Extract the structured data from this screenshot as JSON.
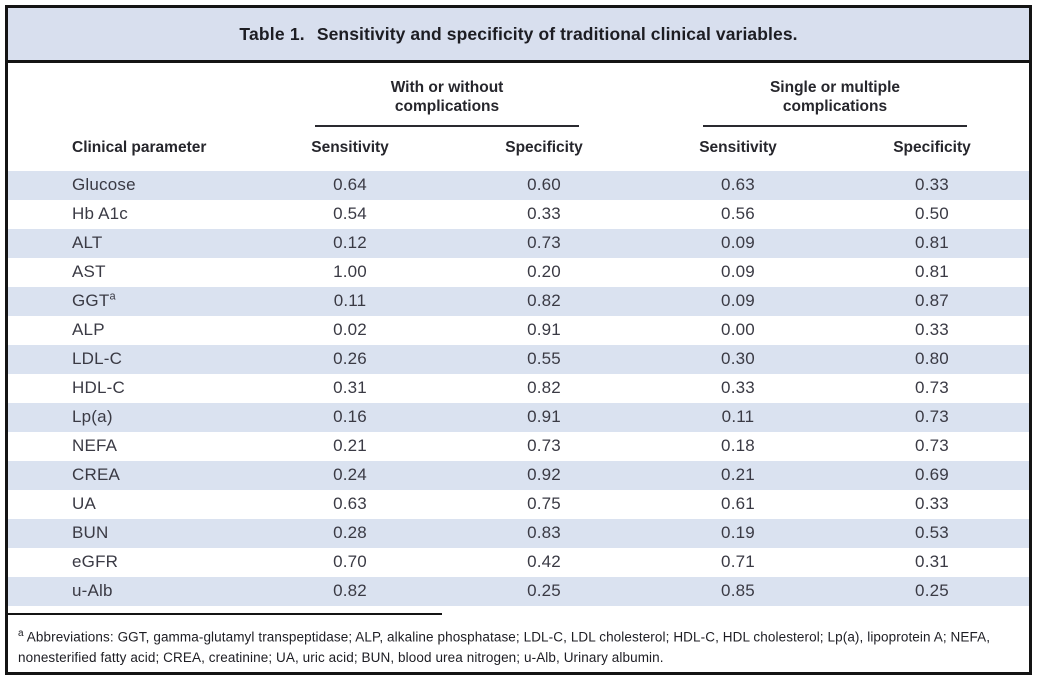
{
  "title": {
    "label": "Table 1.",
    "text": "Sensitivity and specificity of traditional clinical variables."
  },
  "table": {
    "param_header": "Clinical parameter",
    "groups": [
      {
        "line1": "With or without",
        "line2": "complications"
      },
      {
        "line1": "Single or multiple",
        "line2": "complications"
      }
    ],
    "subheaders": [
      "Sensitivity",
      "Specificity",
      "Sensitivity",
      "Specificity"
    ],
    "rows": [
      {
        "param": "Glucose",
        "sup": "",
        "v": [
          "0.64",
          "0.60",
          "0.63",
          "0.33"
        ]
      },
      {
        "param": "Hb A1c",
        "sup": "",
        "v": [
          "0.54",
          "0.33",
          "0.56",
          "0.50"
        ]
      },
      {
        "param": "ALT",
        "sup": "",
        "v": [
          "0.12",
          "0.73",
          "0.09",
          "0.81"
        ]
      },
      {
        "param": "AST",
        "sup": "",
        "v": [
          "1.00",
          "0.20",
          "0.09",
          "0.81"
        ]
      },
      {
        "param": "GGT",
        "sup": "a",
        "v": [
          "0.11",
          "0.82",
          "0.09",
          "0.87"
        ]
      },
      {
        "param": "ALP",
        "sup": "",
        "v": [
          "0.02",
          "0.91",
          "0.00",
          "0.33"
        ]
      },
      {
        "param": "LDL-C",
        "sup": "",
        "v": [
          "0.26",
          "0.55",
          "0.30",
          "0.80"
        ]
      },
      {
        "param": "HDL-C",
        "sup": "",
        "v": [
          "0.31",
          "0.82",
          "0.33",
          "0.73"
        ]
      },
      {
        "param": "Lp(a)",
        "sup": "",
        "v": [
          "0.16",
          "0.91",
          "0.11",
          "0.73"
        ]
      },
      {
        "param": "NEFA",
        "sup": "",
        "v": [
          "0.21",
          "0.73",
          "0.18",
          "0.73"
        ]
      },
      {
        "param": "CREA",
        "sup": "",
        "v": [
          "0.24",
          "0.92",
          "0.21",
          "0.69"
        ]
      },
      {
        "param": "UA",
        "sup": "",
        "v": [
          "0.63",
          "0.75",
          "0.61",
          "0.33"
        ]
      },
      {
        "param": "BUN",
        "sup": "",
        "v": [
          "0.28",
          "0.83",
          "0.19",
          "0.53"
        ]
      },
      {
        "param": "eGFR",
        "sup": "",
        "v": [
          "0.70",
          "0.42",
          "0.71",
          "0.31"
        ]
      },
      {
        "param": "u-Alb",
        "sup": "",
        "v": [
          "0.82",
          "0.25",
          "0.85",
          "0.25"
        ]
      }
    ]
  },
  "footnote": {
    "sup": "a",
    "text": " Abbreviations: GGT, gamma-glutamyl transpeptidase; ALP, alkaline phosphatase; LDL-C, LDL cholesterol; HDL-C, HDL cholesterol; Lp(a), lipoprotein A; NEFA, nonesterified fatty acid; CREA, creatinine; UA, uric acid; BUN, blood urea nitrogen; u-Alb, Urinary albumin."
  },
  "colors": {
    "stripe": "#dae2f0",
    "titlebar_bg": "#d8dfee",
    "border": "#141414",
    "body_text": "#3a3a44",
    "header_text": "#26262c"
  }
}
